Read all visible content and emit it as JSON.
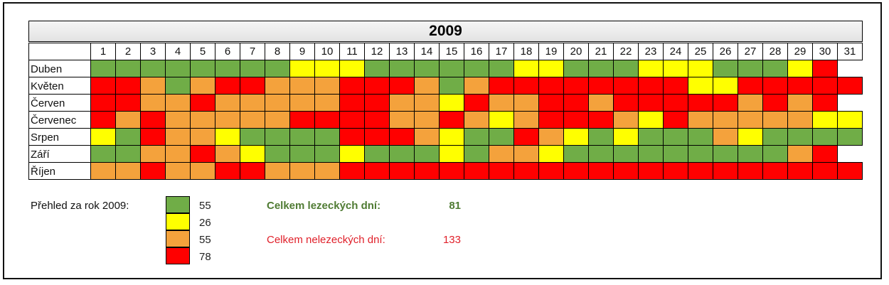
{
  "chart_data": {
    "type": "table",
    "title": "2009",
    "days": [
      "1",
      "2",
      "3",
      "4",
      "5",
      "6",
      "7",
      "8",
      "9",
      "10",
      "11",
      "12",
      "13",
      "14",
      "15",
      "16",
      "17",
      "18",
      "19",
      "20",
      "21",
      "22",
      "23",
      "24",
      "25",
      "26",
      "27",
      "28",
      "29",
      "30",
      "31"
    ],
    "months": [
      {
        "name": "Duben",
        "values": [
          "G",
          "G",
          "G",
          "G",
          "G",
          "G",
          "G",
          "G",
          "Y",
          "Y",
          "Y",
          "G",
          "G",
          "G",
          "G",
          "G",
          "G",
          "Y",
          "Y",
          "G",
          "G",
          "G",
          "Y",
          "Y",
          "Y",
          "G",
          "G",
          "G",
          "Y",
          "R"
        ]
      },
      {
        "name": "Květen",
        "values": [
          "R",
          "R",
          "O",
          "G",
          "O",
          "R",
          "R",
          "O",
          "O",
          "O",
          "R",
          "R",
          "R",
          "O",
          "G",
          "O",
          "R",
          "R",
          "R",
          "R",
          "R",
          "R",
          "R",
          "R",
          "Y",
          "Y",
          "R",
          "R",
          "R",
          "R",
          "R"
        ]
      },
      {
        "name": "Červen",
        "values": [
          "R",
          "R",
          "O",
          "O",
          "R",
          "O",
          "O",
          "O",
          "O",
          "O",
          "R",
          "R",
          "O",
          "O",
          "Y",
          "R",
          "O",
          "O",
          "R",
          "R",
          "O",
          "R",
          "R",
          "R",
          "R",
          "R",
          "O",
          "R",
          "O",
          "R"
        ]
      },
      {
        "name": "Červenec",
        "values": [
          "R",
          "O",
          "R",
          "O",
          "O",
          "O",
          "O",
          "O",
          "R",
          "R",
          "R",
          "R",
          "O",
          "O",
          "R",
          "O",
          "Y",
          "O",
          "R",
          "R",
          "R",
          "O",
          "Y",
          "R",
          "O",
          "O",
          "O",
          "O",
          "O",
          "Y",
          "Y"
        ]
      },
      {
        "name": "Srpen",
        "values": [
          "Y",
          "G",
          "R",
          "O",
          "O",
          "Y",
          "G",
          "G",
          "G",
          "G",
          "R",
          "R",
          "R",
          "O",
          "Y",
          "G",
          "G",
          "R",
          "O",
          "Y",
          "G",
          "Y",
          "G",
          "G",
          "G",
          "O",
          "Y",
          "G",
          "G",
          "G",
          "G"
        ]
      },
      {
        "name": "Září",
        "values": [
          "G",
          "G",
          "O",
          "O",
          "R",
          "O",
          "Y",
          "G",
          "G",
          "G",
          "Y",
          "G",
          "G",
          "G",
          "Y",
          "G",
          "O",
          "O",
          "Y",
          "G",
          "G",
          "G",
          "G",
          "G",
          "G",
          "G",
          "G",
          "G",
          "O",
          "R"
        ]
      },
      {
        "name": "Říjen",
        "values": [
          "O",
          "O",
          "R",
          "O",
          "O",
          "R",
          "R",
          "O",
          "O",
          "O",
          "R",
          "R",
          "R",
          "R",
          "R",
          "R",
          "R",
          "R",
          "R",
          "R",
          "R",
          "R",
          "R",
          "R",
          "R",
          "R",
          "R",
          "R",
          "R",
          "R",
          "R"
        ]
      }
    ],
    "colors": {
      "G": "#70ad47",
      "Y": "#ffff00",
      "O": "#f4a23c",
      "R": "#ff0000"
    }
  },
  "legend": {
    "label": "Přehled za rok 2009:",
    "items": [
      {
        "code": "G",
        "count": "55"
      },
      {
        "code": "Y",
        "count": "26"
      },
      {
        "code": "O",
        "count": "55"
      },
      {
        "code": "R",
        "count": "78"
      }
    ]
  },
  "summary": {
    "climbing_label": "Celkem lezeckých dní:",
    "climbing_value": "81",
    "non_climbing_label": "Celkem nelezeckých dní:",
    "non_climbing_value": "133"
  }
}
